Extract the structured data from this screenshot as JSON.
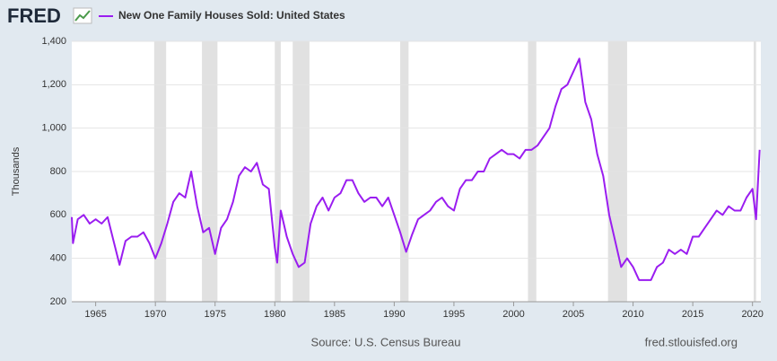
{
  "chart_data": {
    "type": "line",
    "logo": "FRED",
    "source": "Source: U.S. Census Bureau",
    "site": "fred.stlouisfed.org",
    "ylabel": "Thousands",
    "series": [
      {
        "name": "New One Family Houses Sold: United States",
        "color": "#9a1df0",
        "x": [
          1963.0,
          1963.1,
          1963.5,
          1964,
          1964.5,
          1965,
          1965.5,
          1966,
          1966.5,
          1967,
          1967.5,
          1968,
          1968.5,
          1969,
          1969.5,
          1970,
          1970.5,
          1971,
          1971.5,
          1972,
          1972.5,
          1973,
          1973.5,
          1974,
          1974.5,
          1975,
          1975.5,
          1976,
          1976.5,
          1977,
          1977.5,
          1978,
          1978.5,
          1979,
          1979.5,
          1980,
          1980.2,
          1980.5,
          1981,
          1981.5,
          1982,
          1982.5,
          1983,
          1983.5,
          1984,
          1984.5,
          1985,
          1985.5,
          1986,
          1986.5,
          1987,
          1987.5,
          1988,
          1988.5,
          1989,
          1989.5,
          1990,
          1990.5,
          1991,
          1991.5,
          1992,
          1992.5,
          1993,
          1993.5,
          1994,
          1994.5,
          1995,
          1995.5,
          1996,
          1996.5,
          1997,
          1997.5,
          1998,
          1998.5,
          1999,
          1999.5,
          2000,
          2000.5,
          2001,
          2001.5,
          2002,
          2002.5,
          2003,
          2003.5,
          2004,
          2004.5,
          2005,
          2005.5,
          2006,
          2006.5,
          2007,
          2007.5,
          2008,
          2008.5,
          2009,
          2009.5,
          2010,
          2010.5,
          2011,
          2011.5,
          2012,
          2012.5,
          2013,
          2013.5,
          2014,
          2014.5,
          2015,
          2015.5,
          2016,
          2016.5,
          2017,
          2017.5,
          2018,
          2018.5,
          2019,
          2019.5,
          2020,
          2020.3,
          2020.6
        ],
        "values": [
          590,
          470,
          580,
          600,
          560,
          580,
          560,
          590,
          480,
          370,
          480,
          500,
          500,
          520,
          470,
          400,
          470,
          560,
          660,
          700,
          680,
          800,
          640,
          520,
          540,
          420,
          540,
          580,
          660,
          780,
          820,
          800,
          840,
          740,
          720,
          450,
          380,
          620,
          500,
          420,
          360,
          380,
          560,
          640,
          680,
          620,
          680,
          700,
          760,
          760,
          700,
          660,
          680,
          680,
          640,
          680,
          600,
          520,
          430,
          510,
          580,
          600,
          620,
          660,
          680,
          640,
          620,
          720,
          760,
          760,
          800,
          800,
          860,
          880,
          900,
          880,
          880,
          860,
          900,
          900,
          920,
          960,
          1000,
          1100,
          1180,
          1200,
          1260,
          1320,
          1120,
          1040,
          880,
          780,
          600,
          480,
          360,
          400,
          360,
          300,
          300,
          300,
          360,
          380,
          440,
          420,
          440,
          420,
          500,
          500,
          540,
          580,
          620,
          600,
          640,
          620,
          620,
          680,
          720,
          580,
          900
        ]
      }
    ],
    "recessions": [
      [
        1969.9,
        1970.9
      ],
      [
        1973.9,
        1975.2
      ],
      [
        1980.0,
        1980.5
      ],
      [
        1981.5,
        1982.9
      ],
      [
        1990.5,
        1991.2
      ],
      [
        2001.2,
        2001.9
      ],
      [
        2007.9,
        2009.5
      ],
      [
        2020.1,
        2020.3
      ]
    ],
    "xlim": [
      1963,
      2020.7
    ],
    "xticks": [
      1965,
      1970,
      1975,
      1980,
      1985,
      1990,
      1995,
      2000,
      2005,
      2010,
      2015,
      2020
    ],
    "ylim": [
      200,
      1400
    ],
    "yticks": [
      200,
      400,
      600,
      800,
      {
        "value": 1000,
        "label": "1,000"
      },
      {
        "value": 1200,
        "label": "1,200"
      },
      {
        "value": 1400,
        "label": "1,400"
      }
    ],
    "grid": true
  }
}
